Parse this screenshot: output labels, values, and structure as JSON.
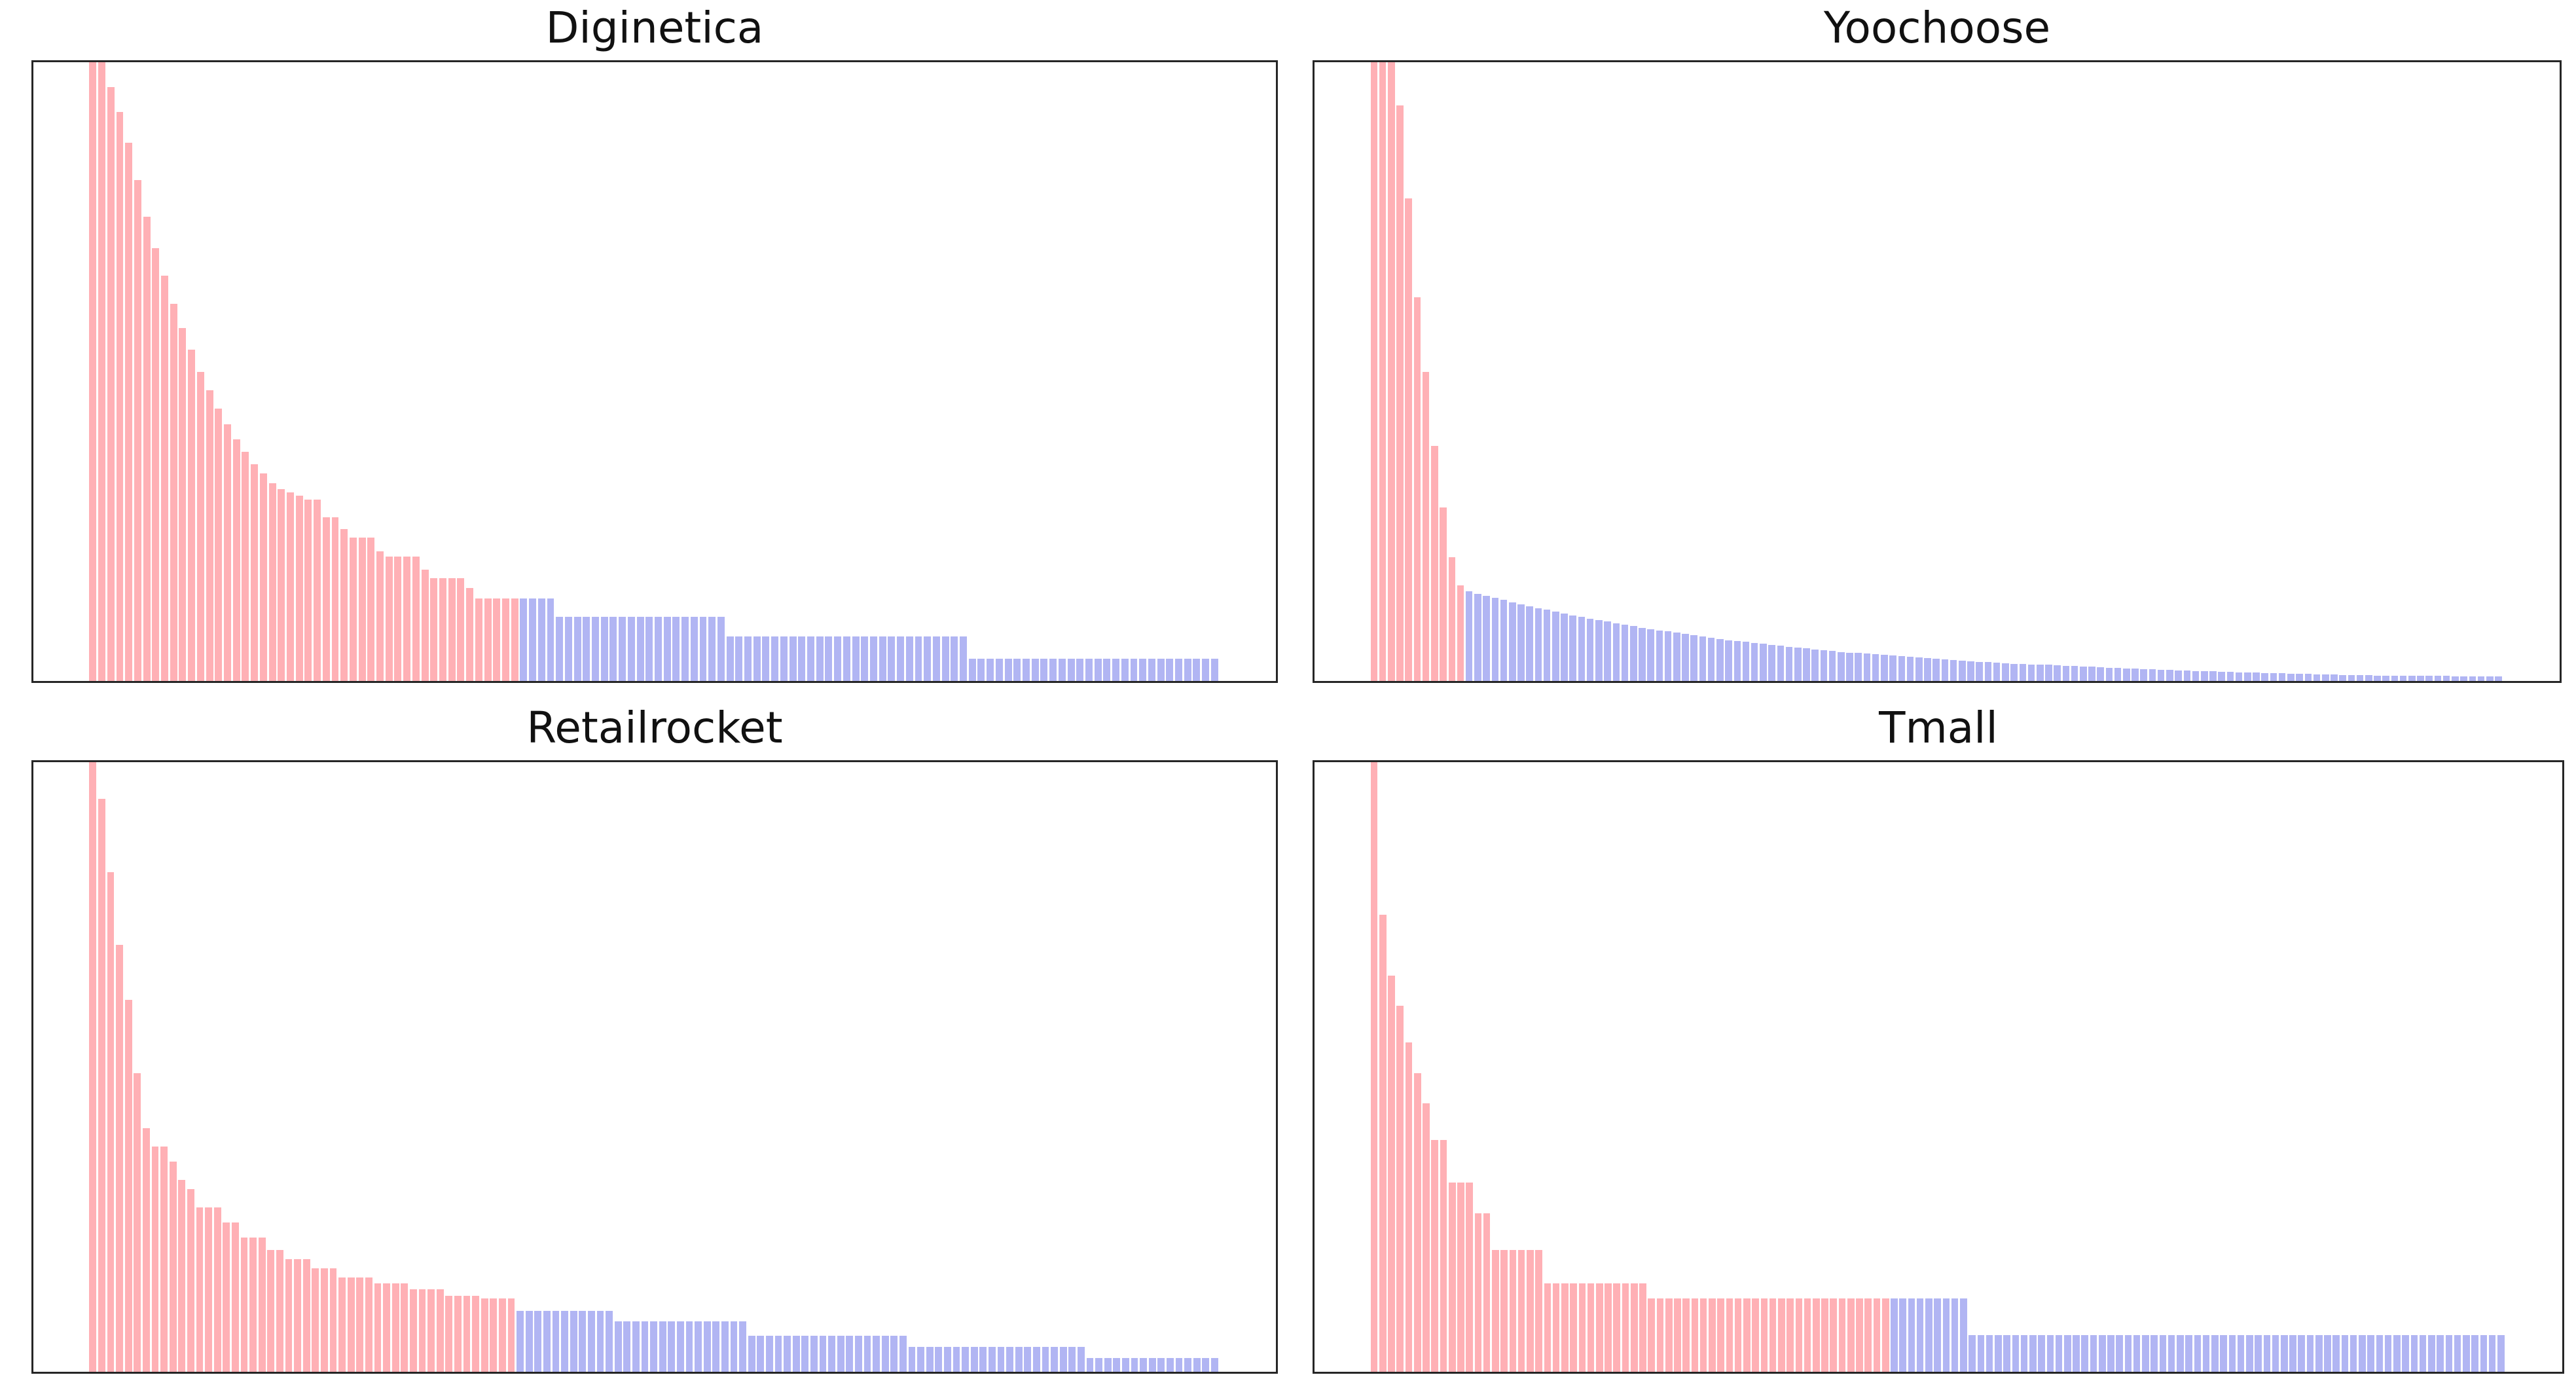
{
  "figure": {
    "background": "#ffffff",
    "grid": "2 rows x 2 columns",
    "axes_ticks": "none",
    "axes_labels": "none",
    "legend": "none",
    "spine_color": "#262626",
    "head_color": "#ffb0b5",
    "tail_color": "#b1b5f3",
    "value_note": "bar heights normalized to plot height (1.0 = top of axes, tallest head bars clipped at 1.0); x is item popularity rank, unlabeled"
  },
  "chart_data": [
    {
      "type": "bar",
      "title": "Diginetica",
      "position": "top-left",
      "xlabel": "",
      "ylabel": "",
      "xticks": "none",
      "yticks": "none",
      "ylim": [
        0,
        1
      ],
      "head_color": "#ffb0b5",
      "tail_color": "#b1b5f3",
      "split_index": 48,
      "values": [
        1.0,
        1.0,
        0.96,
        0.92,
        0.87,
        0.81,
        0.75,
        0.7,
        0.655,
        0.61,
        0.57,
        0.535,
        0.5,
        0.47,
        0.44,
        0.415,
        0.39,
        0.37,
        0.35,
        0.335,
        0.32,
        0.31,
        0.305,
        0.3,
        0.293,
        0.293,
        0.265,
        0.265,
        0.245,
        0.232,
        0.232,
        0.232,
        0.21,
        0.201,
        0.201,
        0.201,
        0.201,
        0.18,
        0.166,
        0.166,
        0.166,
        0.166,
        0.15,
        0.133,
        0.133,
        0.133,
        0.133,
        0.133,
        0.133,
        0.133,
        0.133,
        0.133,
        0.104,
        0.104,
        0.104,
        0.104,
        0.104,
        0.104,
        0.104,
        0.104,
        0.104,
        0.104,
        0.104,
        0.104,
        0.104,
        0.104,
        0.104,
        0.104,
        0.104,
        0.104,
        0.104,
        0.072,
        0.072,
        0.072,
        0.072,
        0.072,
        0.072,
        0.072,
        0.072,
        0.072,
        0.072,
        0.072,
        0.072,
        0.072,
        0.072,
        0.072,
        0.072,
        0.072,
        0.072,
        0.072,
        0.072,
        0.072,
        0.072,
        0.072,
        0.072,
        0.072,
        0.072,
        0.072,
        0.036,
        0.036,
        0.036,
        0.036,
        0.036,
        0.036,
        0.036,
        0.036,
        0.036,
        0.036,
        0.036,
        0.036,
        0.036,
        0.036,
        0.036,
        0.036,
        0.036,
        0.036,
        0.036,
        0.036,
        0.036,
        0.036,
        0.036,
        0.036,
        0.036,
        0.036,
        0.036,
        0.036
      ]
    },
    {
      "type": "bar",
      "title": "Yoochoose",
      "position": "top-right",
      "xlabel": "",
      "ylabel": "",
      "xticks": "none",
      "yticks": "none",
      "ylim": [
        0,
        1
      ],
      "head_color": "#ffb0b5",
      "tail_color": "#b1b5f3",
      "split_index": 11,
      "values": [
        1.0,
        1.0,
        1.0,
        0.93,
        0.78,
        0.62,
        0.5,
        0.38,
        0.28,
        0.2,
        0.155,
        0.145,
        0.141,
        0.138,
        0.134,
        0.131,
        0.127,
        0.124,
        0.121,
        0.118,
        0.115,
        0.112,
        0.109,
        0.106,
        0.104,
        0.101,
        0.098,
        0.096,
        0.093,
        0.091,
        0.089,
        0.086,
        0.084,
        0.082,
        0.08,
        0.078,
        0.076,
        0.074,
        0.072,
        0.07,
        0.068,
        0.066,
        0.065,
        0.063,
        0.061,
        0.06,
        0.058,
        0.057,
        0.055,
        0.054,
        0.053,
        0.051,
        0.05,
        0.049,
        0.047,
        0.046,
        0.045,
        0.044,
        0.043,
        0.042,
        0.041,
        0.04,
        0.039,
        0.038,
        0.037,
        0.036,
        0.035,
        0.034,
        0.033,
        0.032,
        0.031,
        0.031,
        0.03,
        0.029,
        0.028,
        0.028,
        0.027,
        0.026,
        0.026,
        0.025,
        0.024,
        0.024,
        0.023,
        0.023,
        0.022,
        0.021,
        0.021,
        0.02,
        0.02,
        0.019,
        0.019,
        0.018,
        0.018,
        0.017,
        0.017,
        0.016,
        0.016,
        0.016,
        0.015,
        0.015,
        0.014,
        0.014,
        0.014,
        0.013,
        0.013,
        0.013,
        0.012,
        0.012,
        0.012,
        0.011,
        0.011,
        0.011,
        0.01,
        0.01,
        0.01,
        0.01,
        0.009,
        0.009,
        0.009,
        0.009,
        0.008,
        0.008,
        0.008,
        0.008,
        0.008,
        0.007,
        0.007,
        0.007,
        0.007,
        0.007,
        0.007
      ]
    },
    {
      "type": "bar",
      "title": "Retailrocket",
      "position": "bottom-left",
      "xlabel": "",
      "ylabel": "",
      "xticks": "none",
      "yticks": "none",
      "ylim": [
        0,
        1
      ],
      "head_color": "#ffb0b5",
      "tail_color": "#b1b5f3",
      "split_index": 48,
      "values": [
        1.0,
        0.94,
        0.82,
        0.7,
        0.61,
        0.49,
        0.4,
        0.37,
        0.37,
        0.345,
        0.315,
        0.3,
        0.27,
        0.27,
        0.27,
        0.245,
        0.245,
        0.22,
        0.22,
        0.22,
        0.2,
        0.2,
        0.185,
        0.185,
        0.185,
        0.17,
        0.17,
        0.17,
        0.155,
        0.155,
        0.155,
        0.155,
        0.145,
        0.145,
        0.145,
        0.145,
        0.135,
        0.135,
        0.135,
        0.135,
        0.125,
        0.125,
        0.125,
        0.125,
        0.12,
        0.12,
        0.12,
        0.12,
        0.1,
        0.1,
        0.1,
        0.1,
        0.1,
        0.1,
        0.1,
        0.1,
        0.1,
        0.1,
        0.1,
        0.083,
        0.083,
        0.083,
        0.083,
        0.083,
        0.083,
        0.083,
        0.083,
        0.083,
        0.083,
        0.083,
        0.083,
        0.083,
        0.083,
        0.083,
        0.059,
        0.059,
        0.059,
        0.059,
        0.059,
        0.059,
        0.059,
        0.059,
        0.059,
        0.059,
        0.059,
        0.059,
        0.059,
        0.059,
        0.059,
        0.059,
        0.059,
        0.059,
        0.041,
        0.041,
        0.041,
        0.041,
        0.041,
        0.041,
        0.041,
        0.041,
        0.041,
        0.041,
        0.041,
        0.041,
        0.041,
        0.041,
        0.041,
        0.041,
        0.041,
        0.041,
        0.041,
        0.041,
        0.023,
        0.023,
        0.023,
        0.023,
        0.023,
        0.023,
        0.023,
        0.023,
        0.023,
        0.023,
        0.023,
        0.023,
        0.023,
        0.023,
        0.023
      ]
    },
    {
      "type": "bar",
      "title": "Tmall",
      "position": "bottom-right",
      "xlabel": "",
      "ylabel": "",
      "xticks": "none",
      "yticks": "none",
      "ylim": [
        0,
        1
      ],
      "head_color": "#ffb0b5",
      "tail_color": "#b1b5f3",
      "split_index": 60,
      "values": [
        1.0,
        0.75,
        0.65,
        0.6,
        0.54,
        0.49,
        0.44,
        0.38,
        0.38,
        0.31,
        0.31,
        0.31,
        0.26,
        0.26,
        0.2,
        0.2,
        0.2,
        0.2,
        0.2,
        0.2,
        0.145,
        0.145,
        0.145,
        0.145,
        0.145,
        0.145,
        0.145,
        0.145,
        0.145,
        0.145,
        0.145,
        0.145,
        0.12,
        0.12,
        0.12,
        0.12,
        0.12,
        0.12,
        0.12,
        0.12,
        0.12,
        0.12,
        0.12,
        0.12,
        0.12,
        0.12,
        0.12,
        0.12,
        0.12,
        0.12,
        0.12,
        0.12,
        0.12,
        0.12,
        0.12,
        0.12,
        0.12,
        0.12,
        0.12,
        0.12,
        0.12,
        0.12,
        0.12,
        0.12,
        0.12,
        0.12,
        0.12,
        0.12,
        0.12,
        0.06,
        0.06,
        0.06,
        0.06,
        0.06,
        0.06,
        0.06,
        0.06,
        0.06,
        0.06,
        0.06,
        0.06,
        0.06,
        0.06,
        0.06,
        0.06,
        0.06,
        0.06,
        0.06,
        0.06,
        0.06,
        0.06,
        0.06,
        0.06,
        0.06,
        0.06,
        0.06,
        0.06,
        0.06,
        0.06,
        0.06,
        0.06,
        0.06,
        0.06,
        0.06,
        0.06,
        0.06,
        0.06,
        0.06,
        0.06,
        0.06,
        0.06,
        0.06,
        0.06,
        0.06,
        0.06,
        0.06,
        0.06,
        0.06,
        0.06,
        0.06,
        0.06,
        0.06,
        0.06,
        0.06,
        0.06,
        0.06,
        0.06,
        0.06,
        0.06,
        0.06,
        0.06
      ]
    }
  ]
}
